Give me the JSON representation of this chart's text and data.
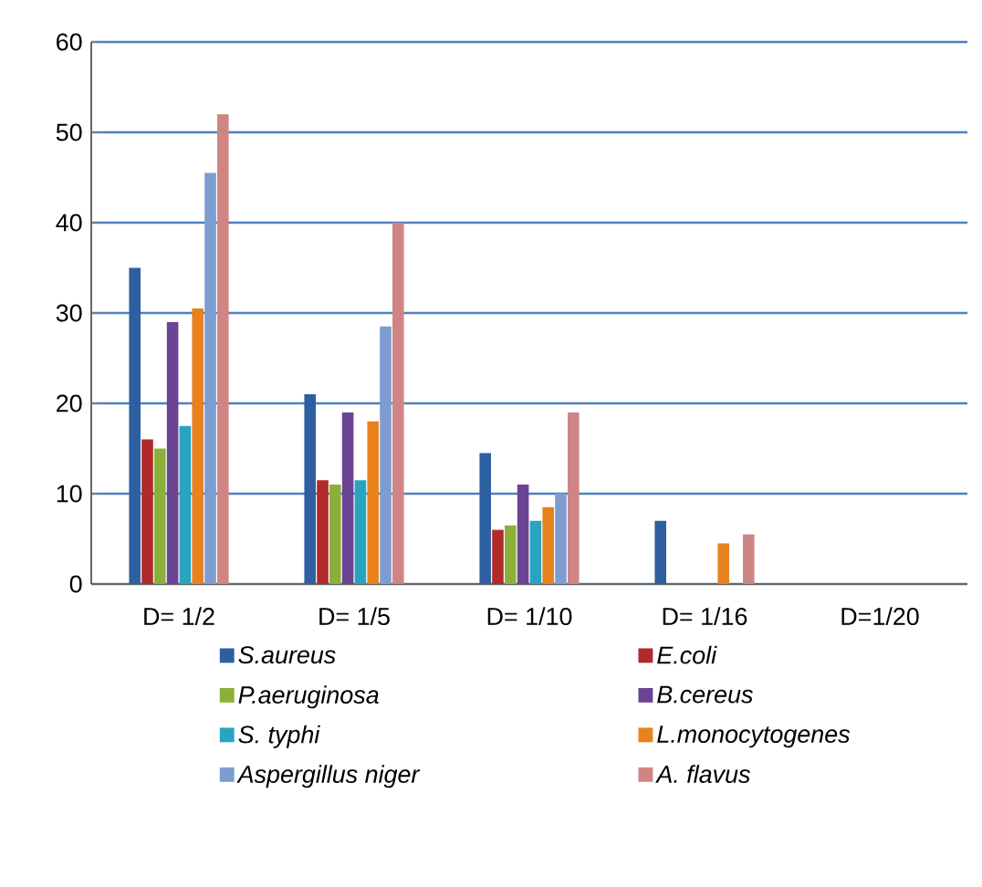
{
  "chart_data": {
    "type": "bar",
    "categories": [
      "D= 1/2",
      "D= 1/5",
      "D= 1/10",
      "D= 1/16",
      "D=1/20"
    ],
    "series": [
      {
        "name": "S.aureus",
        "color": "#2e5fa0",
        "values": [
          35,
          21,
          14.5,
          7,
          0
        ]
      },
      {
        "name": "E.coli",
        "color": "#b02a2a",
        "values": [
          16,
          11.5,
          6,
          0,
          0
        ]
      },
      {
        "name": "P.aeruginosa",
        "color": "#8bb03a",
        "values": [
          15,
          11,
          6.5,
          0,
          0
        ]
      },
      {
        "name": "B.cereus",
        "color": "#6a4392",
        "values": [
          29,
          19,
          11,
          0,
          0
        ]
      },
      {
        "name": "S. typhi",
        "color": "#2aa3bf",
        "values": [
          17.5,
          11.5,
          7,
          0,
          0
        ]
      },
      {
        "name": "L.monocytogenes",
        "color": "#e8821e",
        "values": [
          30.5,
          18,
          8.5,
          4.5,
          0
        ]
      },
      {
        "name": "Aspergillus niger",
        "color": "#7d9dd0",
        "values": [
          45.5,
          28.5,
          10,
          0,
          0
        ]
      },
      {
        "name": "A. flavus",
        "color": "#d08585",
        "values": [
          52,
          40,
          19,
          5.5,
          0
        ]
      }
    ],
    "ylim": [
      0,
      60
    ],
    "yticks": [
      0,
      10,
      20,
      30,
      40,
      50,
      60
    ],
    "grid": "y",
    "legend": "bottom"
  }
}
